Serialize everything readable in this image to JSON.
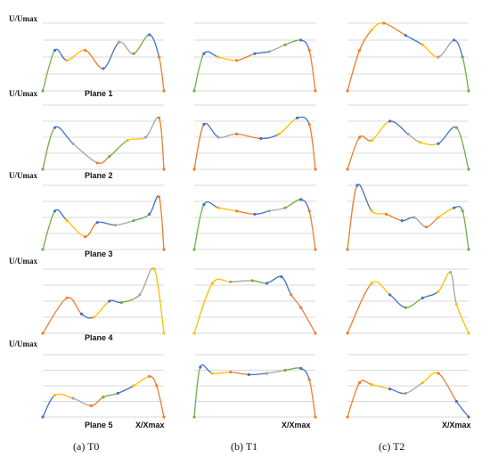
{
  "figure": {
    "y_axis_label": "U/Umax",
    "x_axis_label": "X/Xmax",
    "plane_labels": [
      "Plane 1",
      "Plane 2",
      "Plane 3",
      "Plane 4",
      "Plane 5"
    ],
    "column_captions": [
      "(a) T0",
      "(b) T1",
      "(c) T2"
    ],
    "segment_colors": {
      "orange": "#ED7D31",
      "green": "#70AD47",
      "blue": "#4472C4",
      "gold": "#FFC000",
      "gray": "#A5A5A5"
    },
    "grid_color": "#d9d9d9"
  },
  "chart_data": [
    {
      "type": "line",
      "column": "T0",
      "plane": "Plane 1",
      "ylim": [
        0,
        1
      ],
      "grid": true,
      "x": [
        0,
        0.1,
        0.2,
        0.35,
        0.5,
        0.63,
        0.75,
        0.88,
        0.96,
        1
      ],
      "y": [
        0,
        0.6,
        0.45,
        0.6,
        0.33,
        0.72,
        0.55,
        0.83,
        0.5,
        0
      ],
      "segment_colors": [
        "green",
        "blue",
        "gold",
        "orange",
        "blue",
        "gray",
        "green",
        "blue",
        "orange"
      ]
    },
    {
      "type": "line",
      "column": "T1",
      "plane": "Plane 1",
      "ylim": [
        0,
        1
      ],
      "grid": true,
      "x": [
        0,
        0.08,
        0.2,
        0.35,
        0.5,
        0.62,
        0.75,
        0.88,
        0.95,
        1
      ],
      "y": [
        0,
        0.55,
        0.5,
        0.45,
        0.55,
        0.58,
        0.68,
        0.75,
        0.6,
        0
      ],
      "segment_colors": [
        "green",
        "blue",
        "gold",
        "orange",
        "blue",
        "gray",
        "green",
        "blue",
        "orange"
      ]
    },
    {
      "type": "line",
      "column": "T2",
      "plane": "Plane 1",
      "ylim": [
        0,
        1
      ],
      "grid": true,
      "x": [
        0,
        0.1,
        0.2,
        0.3,
        0.48,
        0.62,
        0.75,
        0.88,
        0.95,
        1
      ],
      "y": [
        0,
        0.6,
        0.9,
        1.0,
        0.82,
        0.68,
        0.5,
        0.75,
        0.5,
        0
      ],
      "segment_colors": [
        "orange",
        "orange",
        "gold",
        "orange",
        "blue",
        "gold",
        "gray",
        "blue",
        "green"
      ]
    },
    {
      "type": "line",
      "column": "T0",
      "plane": "Plane 2",
      "ylim": [
        0,
        1
      ],
      "grid": true,
      "x": [
        0,
        0.1,
        0.25,
        0.45,
        0.55,
        0.7,
        0.85,
        0.96,
        1
      ],
      "y": [
        0,
        0.65,
        0.4,
        0.1,
        0.2,
        0.45,
        0.5,
        0.8,
        0
      ],
      "segment_colors": [
        "green",
        "blue",
        "gray",
        "orange",
        "green",
        "gold",
        "gray",
        "orange"
      ]
    },
    {
      "type": "line",
      "column": "T1",
      "plane": "Plane 2",
      "ylim": [
        0,
        1
      ],
      "grid": true,
      "x": [
        0,
        0.08,
        0.2,
        0.35,
        0.55,
        0.7,
        0.85,
        0.95,
        1
      ],
      "y": [
        0,
        0.7,
        0.5,
        0.55,
        0.48,
        0.55,
        0.8,
        0.7,
        0
      ],
      "segment_colors": [
        "orange",
        "blue",
        "gray",
        "orange",
        "blue",
        "gold",
        "blue",
        "orange"
      ]
    },
    {
      "type": "line",
      "column": "T2",
      "plane": "Plane 2",
      "ylim": [
        0,
        1
      ],
      "grid": true,
      "x": [
        0,
        0.1,
        0.2,
        0.35,
        0.5,
        0.6,
        0.75,
        0.9,
        1
      ],
      "y": [
        0,
        0.5,
        0.45,
        0.75,
        0.55,
        0.42,
        0.4,
        0.65,
        0
      ],
      "segment_colors": [
        "orange",
        "orange",
        "gold",
        "blue",
        "gray",
        "gold",
        "blue",
        "green"
      ]
    },
    {
      "type": "line",
      "column": "T0",
      "plane": "Plane 3",
      "ylim": [
        0,
        1
      ],
      "grid": true,
      "x": [
        0,
        0.1,
        0.2,
        0.35,
        0.45,
        0.6,
        0.75,
        0.88,
        0.96,
        1
      ],
      "y": [
        0,
        0.6,
        0.45,
        0.2,
        0.42,
        0.38,
        0.45,
        0.55,
        0.82,
        0
      ],
      "segment_colors": [
        "green",
        "blue",
        "gold",
        "orange",
        "blue",
        "gray",
        "green",
        "blue",
        "orange"
      ]
    },
    {
      "type": "line",
      "column": "T1",
      "plane": "Plane 3",
      "ylim": [
        0,
        1
      ],
      "grid": true,
      "x": [
        0,
        0.08,
        0.2,
        0.35,
        0.5,
        0.62,
        0.75,
        0.88,
        0.95,
        1
      ],
      "y": [
        0,
        0.7,
        0.65,
        0.6,
        0.55,
        0.6,
        0.65,
        0.78,
        0.6,
        0
      ],
      "segment_colors": [
        "green",
        "blue",
        "gold",
        "orange",
        "blue",
        "gray",
        "green",
        "blue",
        "orange"
      ]
    },
    {
      "type": "line",
      "column": "T2",
      "plane": "Plane 3",
      "ylim": [
        0,
        1
      ],
      "grid": true,
      "x": [
        0,
        0.08,
        0.2,
        0.32,
        0.45,
        0.55,
        0.65,
        0.75,
        0.88,
        0.95,
        1
      ],
      "y": [
        0,
        1.0,
        0.6,
        0.55,
        0.45,
        0.5,
        0.35,
        0.5,
        0.65,
        0.6,
        0
      ],
      "segment_colors": [
        "orange",
        "blue",
        "gold",
        "orange",
        "blue",
        "gray",
        "orange",
        "gold",
        "blue",
        "green"
      ]
    },
    {
      "type": "line",
      "column": "T0",
      "plane": "Plane 4",
      "ylim": [
        0,
        1
      ],
      "grid": true,
      "x": [
        0,
        0.2,
        0.32,
        0.42,
        0.55,
        0.65,
        0.8,
        0.92,
        1
      ],
      "y": [
        0,
        0.55,
        0.3,
        0.25,
        0.5,
        0.48,
        0.6,
        1.0,
        0
      ],
      "segment_colors": [
        "orange",
        "orange",
        "blue",
        "gold",
        "blue",
        "green",
        "gray",
        "gold"
      ]
    },
    {
      "type": "line",
      "column": "T1",
      "plane": "Plane 4",
      "ylim": [
        0,
        1
      ],
      "grid": true,
      "x": [
        0,
        0.15,
        0.3,
        0.48,
        0.6,
        0.72,
        0.8,
        0.88,
        1
      ],
      "y": [
        0,
        0.78,
        0.8,
        0.82,
        0.78,
        0.88,
        0.6,
        0.4,
        0
      ],
      "segment_colors": [
        "gold",
        "gold",
        "gray",
        "green",
        "blue",
        "blue",
        "orange",
        "orange"
      ]
    },
    {
      "type": "line",
      "column": "T2",
      "plane": "Plane 4",
      "ylim": [
        0,
        1
      ],
      "grid": true,
      "x": [
        0,
        0.2,
        0.35,
        0.48,
        0.62,
        0.75,
        0.85,
        0.9,
        1
      ],
      "y": [
        0,
        0.78,
        0.6,
        0.4,
        0.55,
        0.65,
        0.95,
        0.45,
        0
      ],
      "segment_colors": [
        "orange",
        "gold",
        "blue",
        "green",
        "blue",
        "gold",
        "gray",
        "gold"
      ]
    },
    {
      "type": "line",
      "column": "T0",
      "plane": "Plane 5",
      "ylim": [
        0,
        1
      ],
      "grid": true,
      "x": [
        0,
        0.1,
        0.25,
        0.4,
        0.5,
        0.62,
        0.75,
        0.88,
        0.94,
        1
      ],
      "y": [
        0,
        0.35,
        0.3,
        0.18,
        0.32,
        0.38,
        0.5,
        0.65,
        0.5,
        0
      ],
      "segment_colors": [
        "blue",
        "gold",
        "gray",
        "orange",
        "green",
        "blue",
        "gold",
        "orange",
        "orange"
      ]
    },
    {
      "type": "line",
      "column": "T1",
      "plane": "Plane 5",
      "ylim": [
        0,
        1
      ],
      "grid": true,
      "x": [
        0,
        0.05,
        0.15,
        0.3,
        0.45,
        0.6,
        0.75,
        0.88,
        0.95,
        1
      ],
      "y": [
        0,
        0.8,
        0.7,
        0.72,
        0.68,
        0.7,
        0.75,
        0.78,
        0.6,
        0
      ],
      "segment_colors": [
        "green",
        "blue",
        "gold",
        "orange",
        "blue",
        "gray",
        "green",
        "blue",
        "orange"
      ]
    },
    {
      "type": "line",
      "column": "T2",
      "plane": "Plane 5",
      "ylim": [
        0,
        1
      ],
      "grid": true,
      "x": [
        0,
        0.1,
        0.2,
        0.35,
        0.48,
        0.62,
        0.75,
        0.9,
        1
      ],
      "y": [
        0,
        0.55,
        0.52,
        0.45,
        0.38,
        0.55,
        0.7,
        0.25,
        0
      ],
      "segment_colors": [
        "orange",
        "orange",
        "gold",
        "blue",
        "gray",
        "gold",
        "orange",
        "blue"
      ]
    }
  ]
}
